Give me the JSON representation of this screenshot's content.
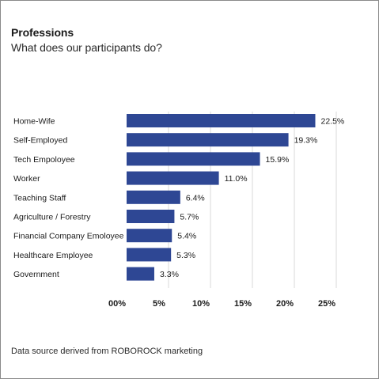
{
  "header": {
    "title": "Professions",
    "subtitle": "What does our participants do?"
  },
  "footer": {
    "source": "Data source derived from ROBOROCK marketing"
  },
  "colors": {
    "bar": "#2e4794",
    "grid": "#d9d9d9"
  },
  "chart_data": {
    "type": "bar",
    "orientation": "horizontal",
    "title": "Professions",
    "subtitle": "What does our participants do?",
    "categories": [
      "Home-Wife",
      "Self-Employed",
      "Tech Empoloyee",
      "Worker",
      "Teaching Staff",
      "Agriculture / Forestry",
      "Financial Company Emoloyee",
      "Healthcare Employee",
      "Government"
    ],
    "values": [
      22.5,
      19.3,
      15.9,
      11.0,
      6.4,
      5.7,
      5.4,
      5.3,
      3.3
    ],
    "value_labels": [
      "22.5%",
      "19.3%",
      "15.9%",
      "11.0%",
      "6.4%",
      "5.7%",
      "5.4%",
      "5.3%",
      "3.3%"
    ],
    "xlim": [
      0,
      25
    ],
    "xticks": [
      0,
      5,
      10,
      15,
      20,
      25
    ],
    "xtick_labels": [
      "00%",
      "5%",
      "10%",
      "15%",
      "20%",
      "25%"
    ],
    "xlabel": "",
    "ylabel": "",
    "grid": "vertical",
    "legend": "none"
  }
}
